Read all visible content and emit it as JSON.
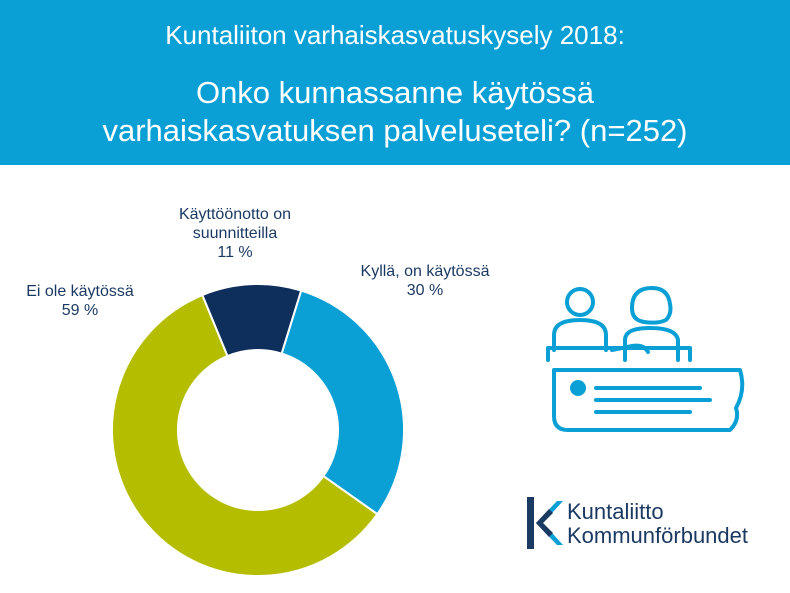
{
  "header": {
    "survey": "Kuntaliiton varhaiskasvatuskysely 2018:",
    "question_line1": "Onko kunnassanne käytössä",
    "question_line2": "varhaiskasvatuksen palveluseteli? (n=252)"
  },
  "chart_data": {
    "type": "pie",
    "donut": true,
    "slices": [
      {
        "label_line1": "Kyllä, on käytössä",
        "label_line2": "",
        "value": 30,
        "value_label": "30 %",
        "color": "#0aa0d6"
      },
      {
        "label_line1": "Ei ole käytössä",
        "label_line2": "",
        "value": 59,
        "value_label": "59 %",
        "color": "#b5bd00"
      },
      {
        "label_line1": "Käyttöönotto on",
        "label_line2": "suunnitteilla",
        "value": 11,
        "value_label": "11 %",
        "color": "#0e2e5c"
      }
    ]
  },
  "logo": {
    "line1": "Kuntaliitto",
    "line2": "Kommunförbundet"
  },
  "colors": {
    "header_bg": "#0aa0d6",
    "text_dark": "#1b3a63",
    "accent": "#0aa0d6"
  }
}
